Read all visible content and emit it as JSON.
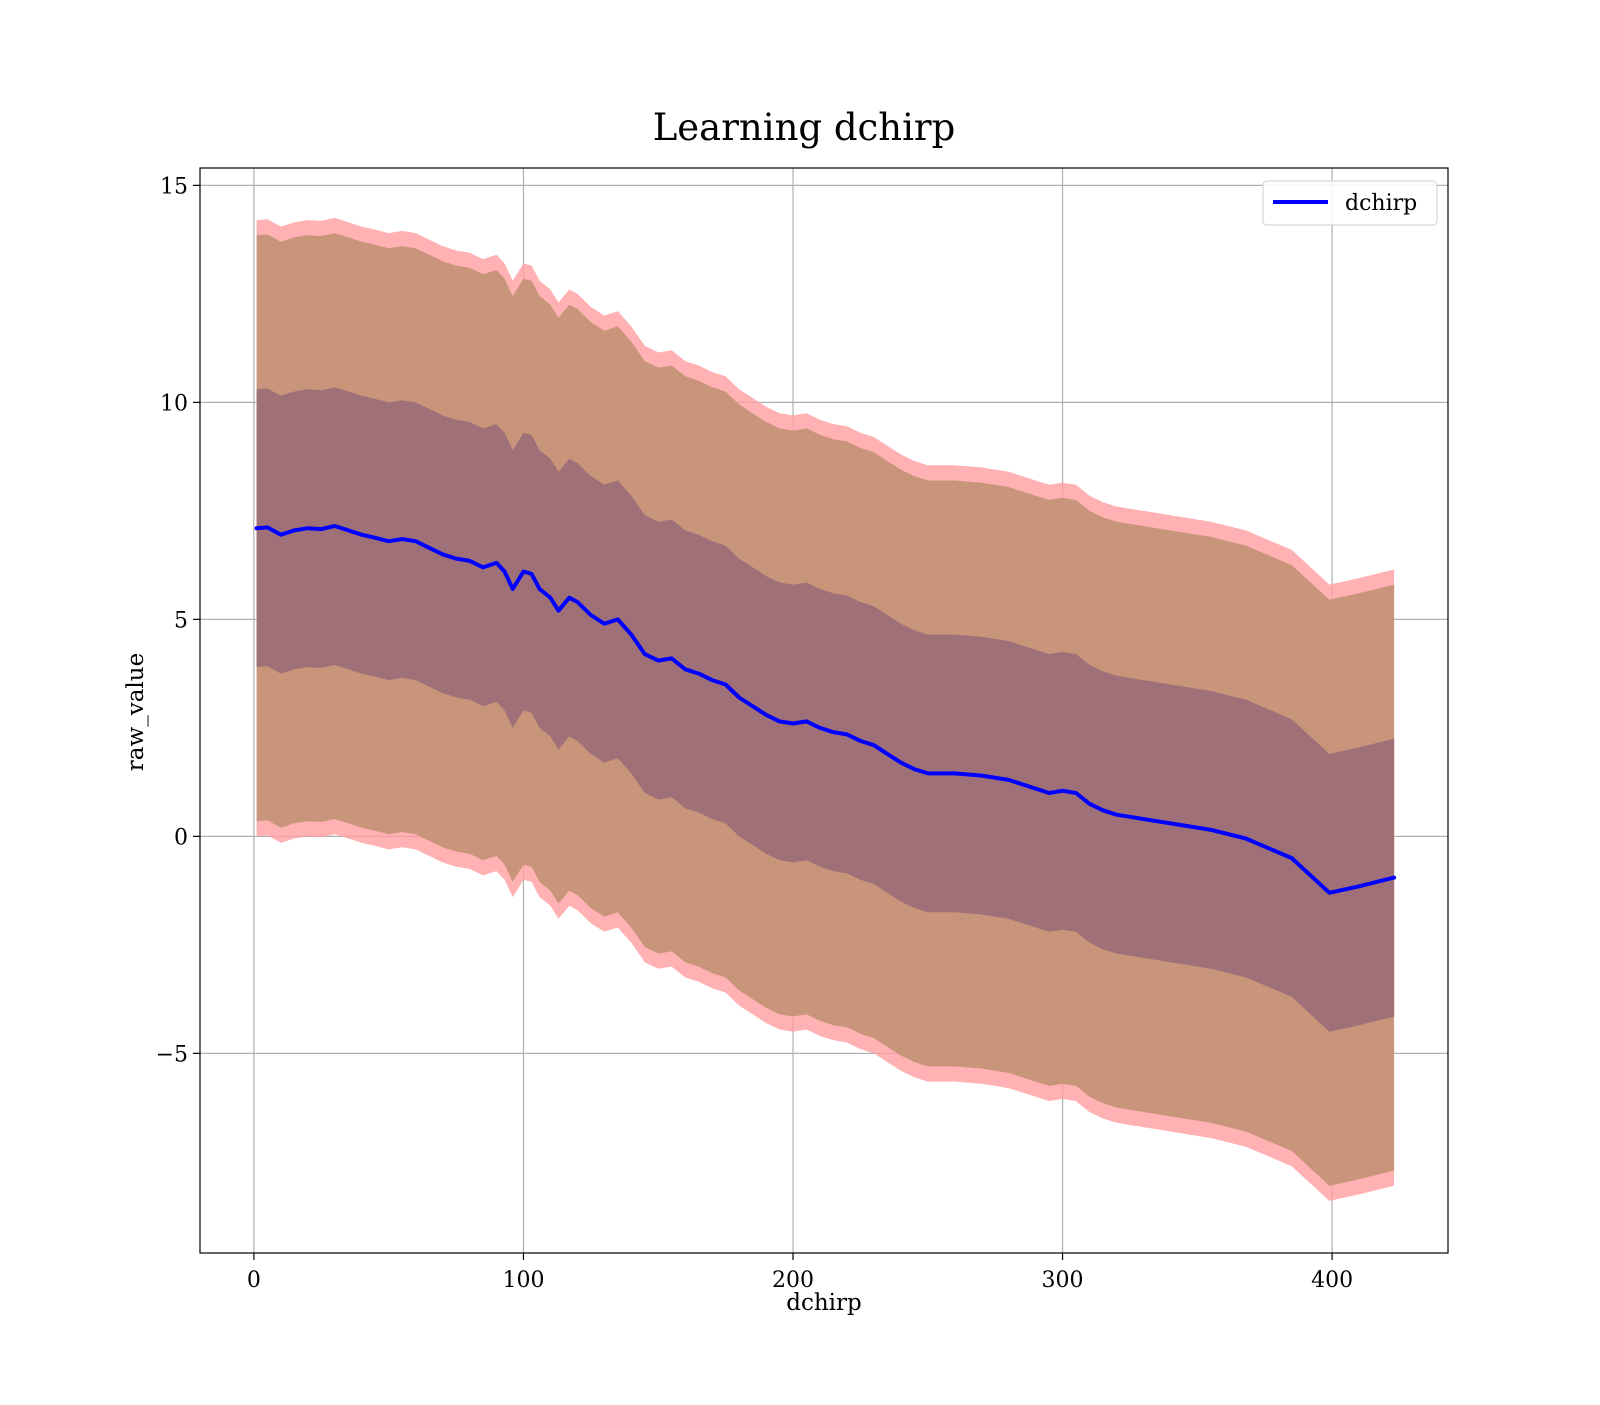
{
  "chart_data": {
    "type": "area",
    "title": "Learning dchirp",
    "xlabel": "dchirp",
    "ylabel": "raw_value",
    "xlim": [
      -20,
      443
    ],
    "ylim": [
      -9.6,
      15.4
    ],
    "x_ticks": [
      0,
      100,
      200,
      300,
      400
    ],
    "x_tick_labels": [
      "0",
      "100",
      "200",
      "300",
      "400"
    ],
    "y_ticks": [
      -5,
      0,
      5,
      10,
      15
    ],
    "y_tick_labels": [
      "−5",
      "0",
      "5",
      "10",
      "15"
    ],
    "grid": true,
    "legend": {
      "position": "upper right",
      "entries": [
        "dchirp"
      ]
    },
    "colors": {
      "line": "#0000ff",
      "outer_band": "#ff9da0",
      "middle_band": "#c8957a",
      "inner_band": "#a07078",
      "grid": "#b0b0b0"
    },
    "series": [
      {
        "name": "dchirp",
        "x": [
          1,
          5,
          10,
          15,
          20,
          25,
          30,
          35,
          40,
          45,
          50,
          55,
          60,
          65,
          70,
          75,
          80,
          85,
          90,
          93,
          96,
          100,
          103,
          106,
          110,
          113,
          117,
          120,
          125,
          130,
          135,
          140,
          145,
          150,
          155,
          160,
          165,
          170,
          175,
          180,
          185,
          190,
          195,
          200,
          205,
          210,
          215,
          220,
          225,
          230,
          235,
          240,
          245,
          250,
          260,
          270,
          280,
          290,
          295,
          300,
          305,
          310,
          315,
          320,
          325,
          335,
          345,
          355,
          368,
          385,
          399,
          410,
          423
        ],
        "values": [
          7.1,
          7.12,
          6.95,
          7.05,
          7.1,
          7.08,
          7.15,
          7.05,
          6.95,
          6.88,
          6.8,
          6.85,
          6.8,
          6.65,
          6.5,
          6.4,
          6.35,
          6.2,
          6.3,
          6.1,
          5.7,
          6.1,
          6.05,
          5.7,
          5.5,
          5.2,
          5.5,
          5.4,
          5.1,
          4.9,
          5.0,
          4.65,
          4.2,
          4.05,
          4.1,
          3.85,
          3.75,
          3.6,
          3.5,
          3.2,
          3.0,
          2.8,
          2.65,
          2.6,
          2.65,
          2.5,
          2.4,
          2.35,
          2.2,
          2.1,
          1.9,
          1.7,
          1.55,
          1.45,
          1.45,
          1.4,
          1.3,
          1.1,
          1.0,
          1.05,
          1.0,
          0.75,
          0.6,
          0.5,
          0.45,
          0.35,
          0.25,
          0.15,
          -0.05,
          -0.5,
          -1.3,
          -1.15,
          -0.95
        ]
      }
    ],
    "bands": [
      {
        "level": "outer",
        "half_width": 7.1
      },
      {
        "level": "middle",
        "half_width": 6.75
      },
      {
        "level": "inner",
        "half_width": 3.2
      }
    ]
  }
}
